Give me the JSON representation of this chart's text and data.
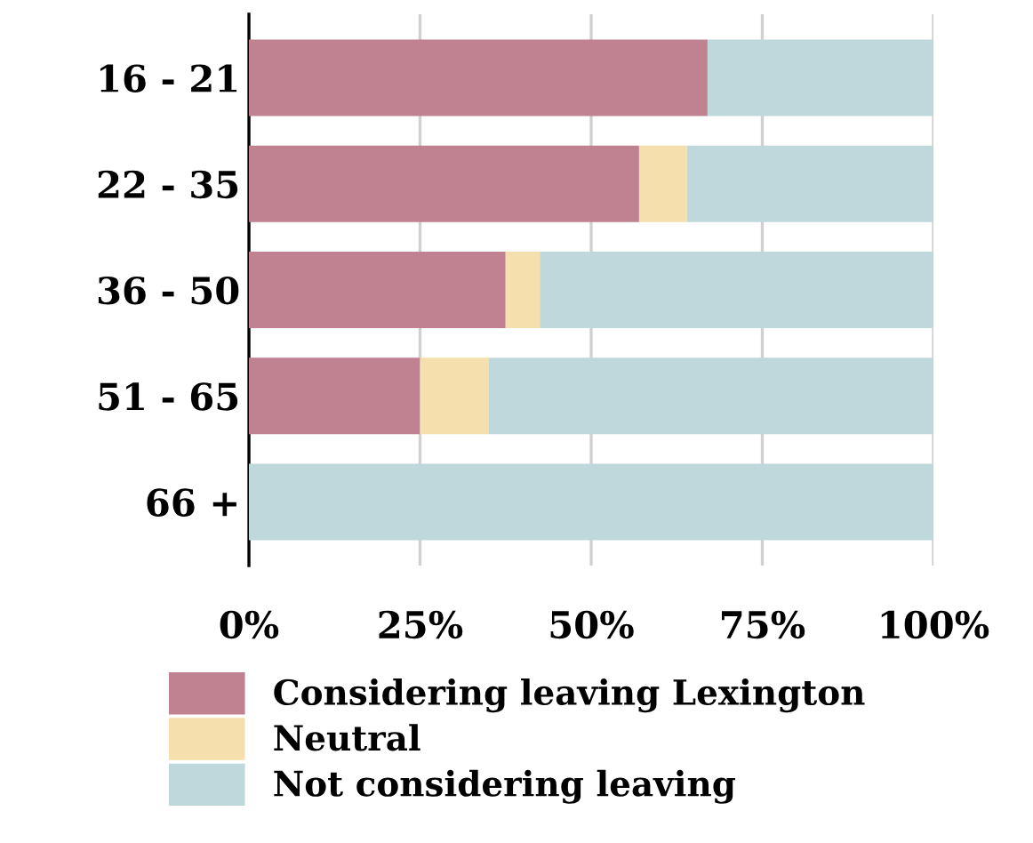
{
  "chart_data": {
    "type": "bar",
    "orientation": "horizontal",
    "stacked": true,
    "categories": [
      "16 - 21",
      "22 - 35",
      "36 - 50",
      "51 - 65",
      "66 +"
    ],
    "series": [
      {
        "name": "Considering leaving Lexington",
        "color": "#c08190",
        "values": [
          67,
          57,
          37.5,
          25,
          0
        ]
      },
      {
        "name": "Neutral",
        "color": "#f5e0ad",
        "values": [
          0,
          7,
          5,
          10,
          0
        ]
      },
      {
        "name": "Not considering leaving",
        "color": "#bfd8dc",
        "values": [
          33,
          36,
          57.5,
          65,
          100
        ]
      }
    ],
    "xlim": [
      0,
      100
    ],
    "xticks": [
      {
        "value": 0,
        "label": "0%"
      },
      {
        "value": 25,
        "label": "25%"
      },
      {
        "value": 50,
        "label": "50%"
      },
      {
        "value": 75,
        "label": "75%"
      },
      {
        "value": 100,
        "label": "100%"
      }
    ],
    "grid": "x",
    "legend": "bottom"
  }
}
